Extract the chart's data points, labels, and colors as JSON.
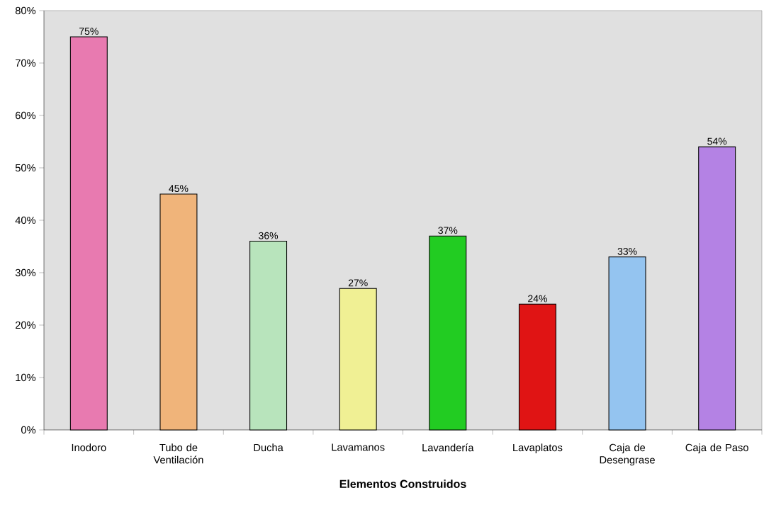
{
  "chart_data": {
    "type": "bar",
    "xlabel": "Elementos Construidos",
    "categories": [
      "Inodoro",
      "Tubo de Ventilación",
      "Ducha",
      "Lavamanos",
      "Lavandería",
      "Lavaplatos",
      "Caja de Desengrase",
      "Caja de Paso"
    ],
    "values": [
      75,
      45,
      36,
      27,
      37,
      24,
      33,
      54
    ],
    "value_labels": [
      "75%",
      "45%",
      "36%",
      "27%",
      "37%",
      "24%",
      "33%",
      "54%"
    ],
    "colors": [
      "#e87ab0",
      "#f0b47a",
      "#b8e4bc",
      "#f0f094",
      "#22cc22",
      "#e01414",
      "#94c4f0",
      "#b482e4"
    ],
    "ylim": [
      0,
      80
    ],
    "yticks": [
      {
        "value": 0,
        "label": "0%"
      },
      {
        "value": 10,
        "label": "10%"
      },
      {
        "value": 20,
        "label": "20%"
      },
      {
        "value": 30,
        "label": "30%"
      },
      {
        "value": 40,
        "label": "40%"
      },
      {
        "value": 50,
        "label": "50%"
      },
      {
        "value": 60,
        "label": "60%"
      },
      {
        "value": 70,
        "label": "70%"
      },
      {
        "value": 80,
        "label": "80%"
      }
    ],
    "grid": false
  }
}
